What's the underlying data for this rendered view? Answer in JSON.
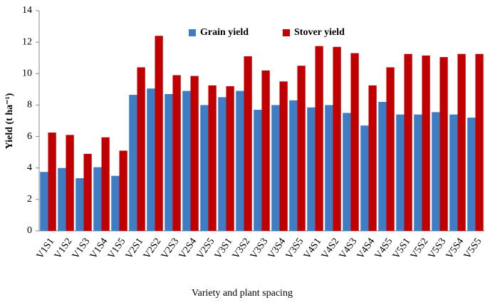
{
  "chart_data": {
    "type": "bar",
    "y_label": "Yield (t ha⁻¹)",
    "x_label": "Variety and plant spacing",
    "categories": [
      "V1S1",
      "V1S2",
      "V1S3",
      "V1S4",
      "V1S5",
      "V2S1",
      "V2S2",
      "V2S3",
      "V2S4",
      "V2S5",
      "V3S1",
      "V3S2",
      "V3S3",
      "V3S4",
      "V3S5",
      "V4S1",
      "V4S2",
      "V4S3",
      "V4S4",
      "V4S5",
      "V5S1",
      "V5S2",
      "V5S3",
      "V5S4",
      "V5S5"
    ],
    "series": [
      {
        "name": "Grain yield",
        "color": "#3e7cc4",
        "values": [
          3.75,
          4.0,
          3.35,
          4.05,
          3.5,
          8.65,
          9.05,
          8.7,
          8.9,
          8.0,
          8.5,
          8.9,
          7.7,
          8.0,
          8.3,
          7.85,
          8.0,
          7.5,
          6.7,
          8.2,
          7.4,
          7.4,
          7.55,
          7.4,
          7.2
        ]
      },
      {
        "name": "Stover yield",
        "color": "#c00000",
        "values": [
          6.25,
          6.1,
          4.9,
          5.95,
          5.1,
          10.4,
          12.4,
          9.9,
          9.85,
          9.25,
          9.2,
          11.1,
          10.2,
          9.5,
          10.5,
          11.75,
          11.7,
          11.3,
          9.25,
          10.4,
          11.25,
          11.15,
          11.05,
          11.25,
          11.25
        ]
      }
    ],
    "ylim": [
      0,
      14
    ],
    "yticks": [
      0,
      2,
      4,
      6,
      8,
      10,
      12,
      14
    ],
    "legend": "top-center"
  }
}
